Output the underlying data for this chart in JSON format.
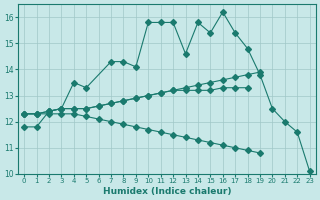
{
  "xlabel": "Humidex (Indice chaleur)",
  "x": [
    0,
    1,
    2,
    3,
    4,
    5,
    6,
    7,
    8,
    9,
    10,
    11,
    12,
    13,
    14,
    15,
    16,
    17,
    18,
    19,
    20,
    21,
    22,
    23
  ],
  "line1": [
    11.8,
    11.8,
    12.4,
    12.5,
    13.5,
    13.3,
    null,
    14.3,
    14.3,
    14.1,
    15.8,
    15.8,
    15.8,
    14.6,
    15.8,
    15.4,
    16.2,
    15.4,
    14.8,
    13.8,
    12.5,
    12.0,
    11.6,
    10.1
  ],
  "line2": [
    12.3,
    12.3,
    12.4,
    12.5,
    12.5,
    12.5,
    12.6,
    12.7,
    12.8,
    12.9,
    13.0,
    13.1,
    13.2,
    13.3,
    13.4,
    13.5,
    13.6,
    13.7,
    13.8,
    13.9,
    null,
    null,
    null,
    null
  ],
  "line3": [
    12.3,
    12.3,
    12.4,
    12.5,
    12.5,
    12.5,
    12.6,
    12.7,
    12.8,
    12.9,
    13.0,
    13.1,
    13.2,
    13.2,
    13.2,
    13.2,
    13.3,
    13.3,
    13.3,
    null,
    null,
    null,
    null,
    null
  ],
  "line4": [
    12.3,
    12.3,
    12.3,
    12.3,
    12.3,
    12.2,
    12.1,
    12.0,
    11.9,
    11.8,
    11.7,
    11.6,
    11.5,
    11.4,
    11.3,
    11.2,
    11.1,
    11.0,
    10.9,
    10.8,
    null,
    null,
    null,
    null
  ],
  "color": "#1a7a6e",
  "bg_color": "#c8e8e8",
  "grid_color": "#a0c8c8",
  "ylim": [
    10,
    16.5
  ],
  "xlim": [
    -0.5,
    23.5
  ],
  "yticks": [
    10,
    11,
    12,
    13,
    14,
    15,
    16
  ],
  "xticks": [
    0,
    1,
    2,
    3,
    4,
    5,
    6,
    7,
    8,
    9,
    10,
    11,
    12,
    13,
    14,
    15,
    16,
    17,
    18,
    19,
    20,
    21,
    22,
    23
  ]
}
